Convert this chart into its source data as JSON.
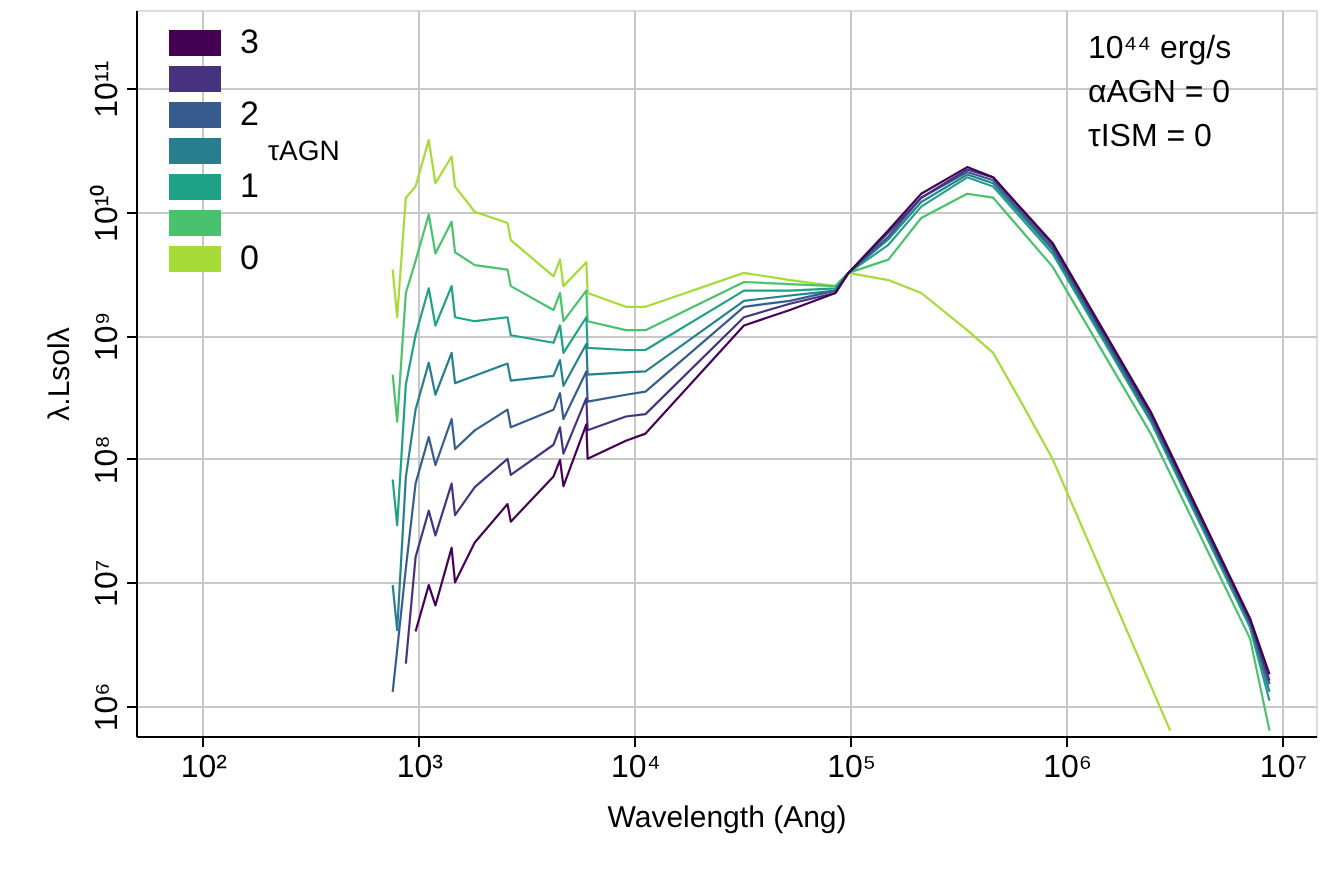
{
  "chart_data": {
    "type": "line",
    "xlabel": "Wavelength (Ang)",
    "ylabel": "λ.Lsolλ",
    "legend_title": "τAGN",
    "log": "xy",
    "grid": true,
    "legend": "top left",
    "marker": "none",
    "line_style": "solid",
    "xlim": [
      49,
      14300000
    ],
    "ylim": [
      570000,
      430000000000
    ],
    "xticks": [
      {
        "value": 100,
        "label": "10²"
      },
      {
        "value": 1000,
        "label": "10³"
      },
      {
        "value": 10000,
        "label": "10⁴"
      },
      {
        "value": 100000,
        "label": "10⁵"
      },
      {
        "value": 1000000,
        "label": "10⁶"
      },
      {
        "value": 10000000,
        "label": "10⁷"
      }
    ],
    "yticks": [
      {
        "value": 1000000,
        "label": "10⁶"
      },
      {
        "value": 10000000,
        "label": "10⁷"
      },
      {
        "value": 100000000,
        "label": "10⁸"
      },
      {
        "value": 1000000000,
        "label": "10⁹"
      },
      {
        "value": 10000000000,
        "label": "10¹⁰"
      },
      {
        "value": 100000000000,
        "label": "10¹¹"
      }
    ],
    "annotations": [
      "10⁴⁴ erg/s",
      "αAGN = 0",
      "τISM = 0"
    ],
    "x": [
      757,
      794,
      871,
      966,
      1112,
      1194,
      1419,
      1472,
      1816,
      2576,
      2667,
      4207,
      4508,
      4677,
      5970,
      6053,
      9100,
      11220,
      32060,
      52360,
      85110,
      97720,
      149600,
      212300,
      346700,
      457100,
      861000,
      2455000,
      7079000,
      8710000
    ],
    "series": [
      {
        "name": "0",
        "color": "#a5db36",
        "x": [
          757,
          794,
          871,
          966,
          1112,
          1194,
          1419,
          1472,
          1816,
          2576,
          2667,
          4207,
          4508,
          4677,
          5970,
          6053,
          9100,
          11220,
          32060,
          52360,
          85110,
          97720,
          149600,
          212300,
          346700,
          457100,
          608100,
          861000,
          3020000
        ],
        "values": [
          3400000000.0,
          1400000000.0,
          13000000000.0,
          16000000000.0,
          38000000000.0,
          17000000000.0,
          28000000000.0,
          16000000000.0,
          10000000000.0,
          8100000000.0,
          5900000000.0,
          3000000000.0,
          4100000000.0,
          2500000000.0,
          3900000000.0,
          2200000000.0,
          1700000000.0,
          1700000000.0,
          3200000000.0,
          2800000000.0,
          2500000000.0,
          3200000000.0,
          2800000000.0,
          2200000000.0,
          1100000000.0,
          720000000.0,
          300000000.0,
          100000000.0,
          630000.0
        ]
      },
      {
        "color": "#4ac16d",
        "values": [
          480000000.0,
          200000000.0,
          2200000000.0,
          4000000000.0,
          9500000000.0,
          4600000000.0,
          8300000000.0,
          4700000000.0,
          3700000000.0,
          3400000000.0,
          2500000000.0,
          1600000000.0,
          2200000000.0,
          1300000000.0,
          2300000000.0,
          1300000000.0,
          1100000000.0,
          1100000000.0,
          2700000000.0,
          2600000000.0,
          2500000000.0,
          3200000000.0,
          4100000000.0,
          8900000000.0,
          14000000000.0,
          13000000000.0,
          3600000000.0,
          160000000.0,
          3500000.0,
          630000.0
        ]
      },
      {
        "name": "1",
        "color": "#1fa187",
        "values": [
          68000000.0,
          29000000.0,
          400000000.0,
          1000000000.0,
          2400000000.0,
          1200000000.0,
          2500000000.0,
          1400000000.0,
          1300000000.0,
          1400000000.0,
          1000000000.0,
          870000000.0,
          1200000000.0,
          720000000.0,
          1400000000.0,
          790000000.0,
          760000000.0,
          760000000.0,
          2300000000.0,
          2300000000.0,
          2400000000.0,
          3200000000.0,
          5400000000.0,
          11000000000.0,
          19000000000.0,
          16000000000.0,
          4600000000.0,
          200000000.0,
          4300000.0,
          1100000.0
        ]
      },
      {
        "color": "#277f8e",
        "values": [
          9500000.0,
          4100000.0,
          71000000.0,
          250000000.0,
          600000000.0,
          330000000.0,
          720000000.0,
          410000000.0,
          470000000.0,
          590000000.0,
          430000000.0,
          470000000.0,
          630000000.0,
          390000000.0,
          850000000.0,
          480000000.0,
          500000000.0,
          510000000.0,
          1900000000.0,
          2100000000.0,
          2300000000.0,
          3200000000.0,
          6000000000.0,
          12000000000.0,
          20000000000.0,
          17000000000.0,
          4900000000.0,
          210000000.0,
          4600000.0,
          1300000.0
        ]
      },
      {
        "name": "2",
        "color": "#365c8d",
        "values": [
          1300000.0,
          null,
          13000000.0,
          63000000.0,
          150000000.0,
          89000000.0,
          210000000.0,
          120000000.0,
          170000000.0,
          250000000.0,
          180000000.0,
          250000000.0,
          340000000.0,
          210000000.0,
          510000000.0,
          290000000.0,
          330000000.0,
          350000000.0,
          1700000000.0,
          1900000000.0,
          2300000000.0,
          3200000000.0,
          6300000000.0,
          13000000000.0,
          21000000000.0,
          18000000000.0,
          5100000000.0,
          220000000.0,
          4800000.0,
          1500000.0
        ]
      },
      {
        "color": "#46327e",
        "values": [
          null,
          null,
          2200000.0,
          16000000.0,
          38000000.0,
          24000000.0,
          63000000.0,
          35000000.0,
          59000000.0,
          100000000.0,
          74000000.0,
          130000000.0,
          180000000.0,
          110000000.0,
          310000000.0,
          170000000.0,
          220000000.0,
          230000000.0,
          1400000000.0,
          1800000000.0,
          2200000000.0,
          3200000000.0,
          6800000000.0,
          13000000000.0,
          22000000000.0,
          19000000000.0,
          5400000000.0,
          230000000.0,
          4900000.0,
          1600000.0
        ]
      },
      {
        "name": "3",
        "color": "#440154",
        "values": [
          null,
          null,
          null,
          4000000.0,
          9500000.0,
          6500000.0,
          19000000.0,
          10000000.0,
          21000000.0,
          43000000.0,
          31000000.0,
          72000000.0,
          98000000.0,
          60000000.0,
          190000000.0,
          100000000.0,
          140000000.0,
          160000000.0,
          1200000000.0,
          1600000000.0,
          2200000000.0,
          3200000000.0,
          7100000000.0,
          14000000000.0,
          23000000000.0,
          19000000000.0,
          5600000000.0,
          240000000.0,
          5100000.0,
          1800000.0
        ]
      }
    ]
  }
}
